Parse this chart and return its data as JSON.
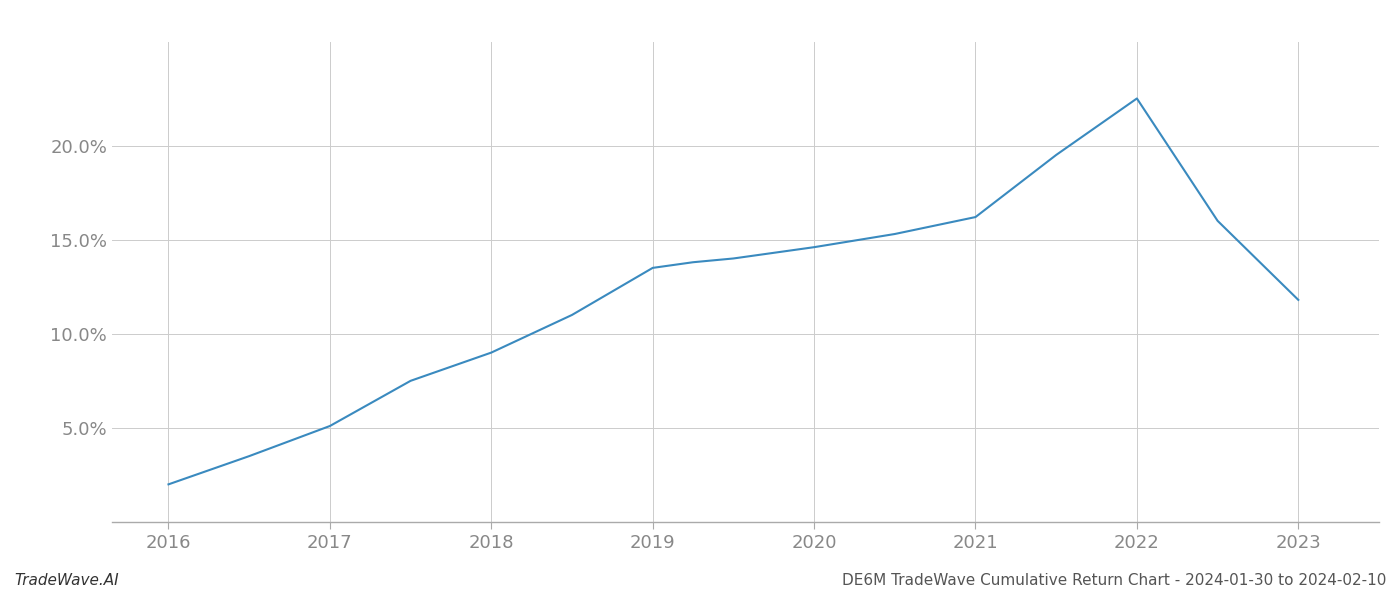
{
  "x_years": [
    2016,
    2016.5,
    2017,
    2017.5,
    2018,
    2018.5,
    2019,
    2019.25,
    2019.5,
    2020,
    2020.5,
    2021,
    2021.5,
    2022,
    2022.5,
    2023
  ],
  "y_values": [
    2.0,
    3.5,
    5.1,
    7.5,
    9.0,
    11.0,
    13.5,
    13.8,
    14.0,
    14.6,
    15.3,
    16.2,
    19.5,
    22.5,
    16.0,
    11.8
  ],
  "xtick_labels": [
    "2016",
    "2017",
    "2018",
    "2019",
    "2020",
    "2021",
    "2022",
    "2023"
  ],
  "xtick_positions": [
    2016,
    2017,
    2018,
    2019,
    2020,
    2021,
    2022,
    2023
  ],
  "ytick_labels": [
    "5.0%",
    "10.0%",
    "15.0%",
    "20.0%"
  ],
  "ytick_values": [
    5.0,
    10.0,
    15.0,
    20.0
  ],
  "line_color": "#3a8abf",
  "line_width": 1.5,
  "footer_left": "TradeWave.AI",
  "footer_right": "DE6M TradeWave Cumulative Return Chart - 2024-01-30 to 2024-02-10",
  "background_color": "#ffffff",
  "grid_color": "#cccccc",
  "xlim": [
    2015.65,
    2023.5
  ],
  "ylim": [
    0,
    25.5
  ]
}
